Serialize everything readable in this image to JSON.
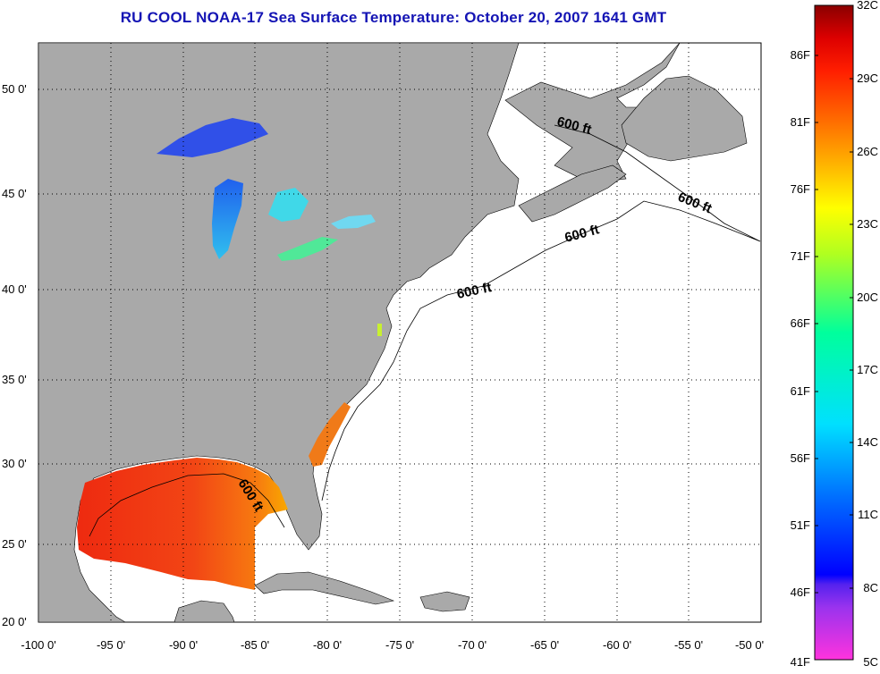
{
  "title": "RU COOL  NOAA-17  Sea Surface Temperature:  October 20, 2007 1641 GMT",
  "map": {
    "lat_ticks": [
      "50 0'",
      "45 0'",
      "40 0'",
      "35 0'",
      "30 0'",
      "25 0'",
      "20 0'"
    ],
    "lon_ticks": [
      "-100 0'",
      "-95 0'",
      "-90 0'",
      "-85 0'",
      "-80 0'",
      "-75 0'",
      "-70 0'",
      "-65 0'",
      "-60 0'",
      "-55 0'",
      "-50 0'"
    ],
    "contour_labels": [
      "600 ft",
      "600 ft",
      "600 ft",
      "600 ft",
      "600 ft"
    ],
    "colors": {
      "land": "#a9a9a9",
      "ocean": "#ffffff"
    }
  },
  "colorbar": {
    "f_labels": [
      "86F",
      "81F",
      "76F",
      "71F",
      "66F",
      "61F",
      "56F",
      "51F",
      "46F",
      "41F"
    ],
    "c_labels": [
      "32C",
      "29C",
      "26C",
      "23C",
      "20C",
      "17C",
      "14C",
      "11C",
      "8C",
      "5C"
    ]
  }
}
